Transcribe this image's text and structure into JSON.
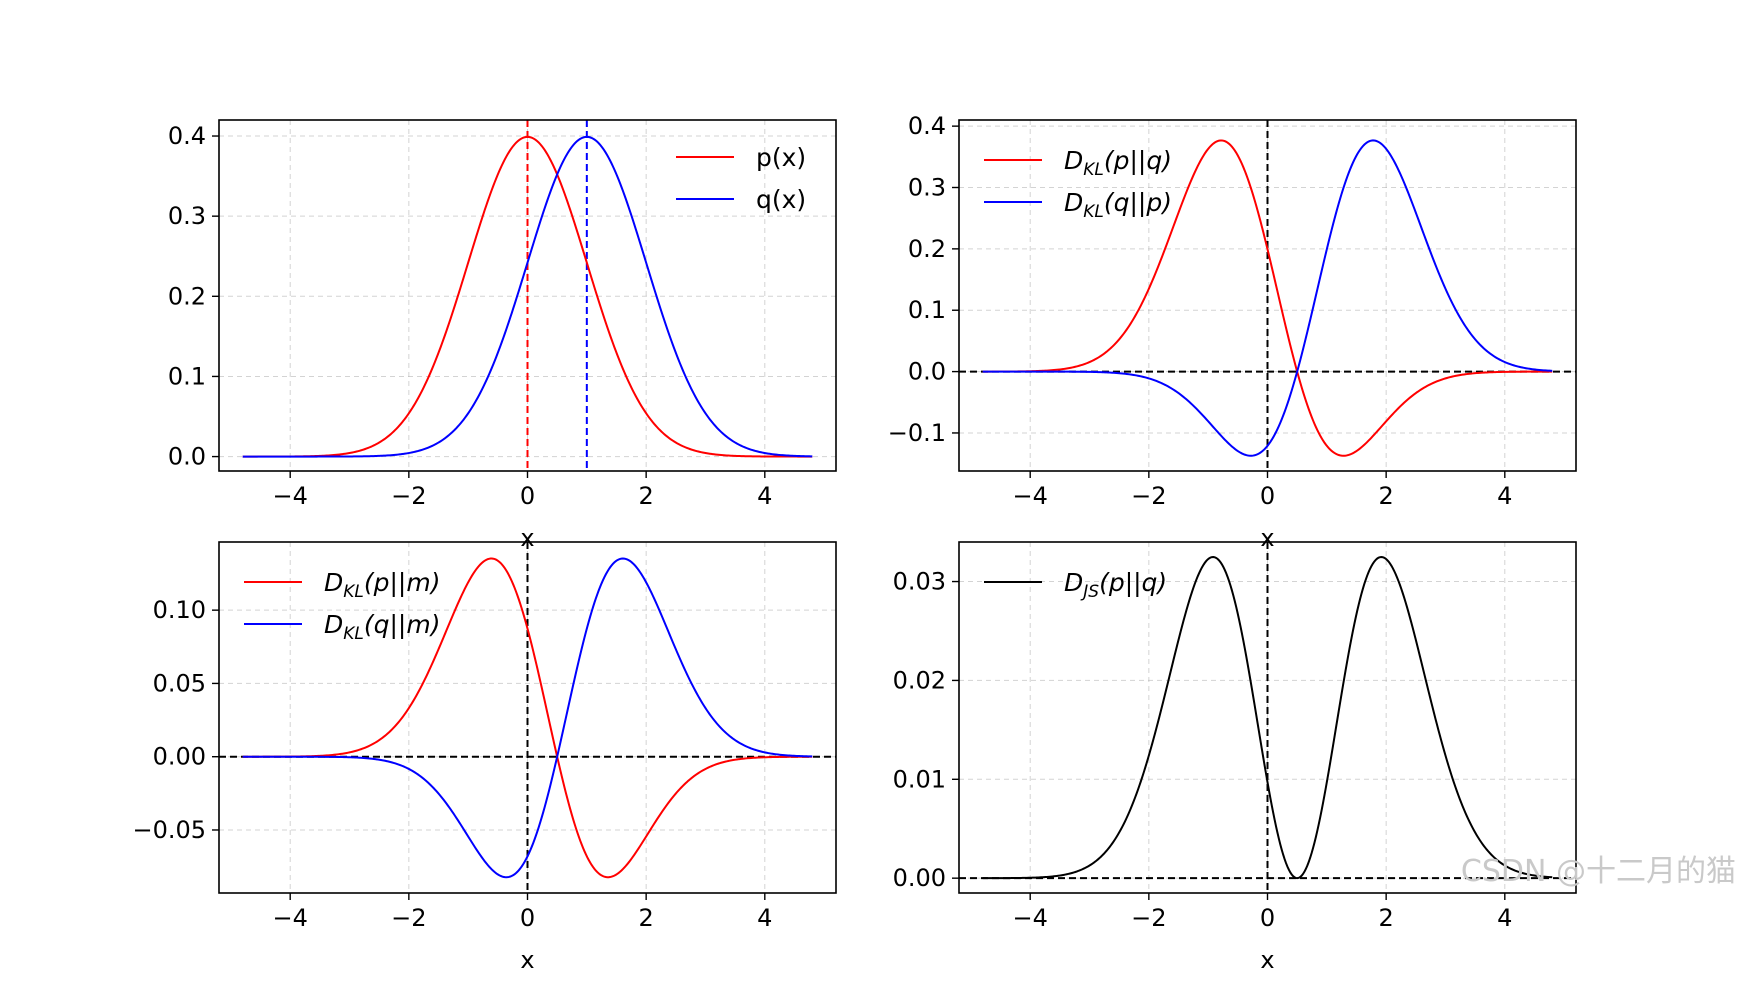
{
  "chart_data": [
    {
      "type": "line",
      "xlabel": "x",
      "xlim": [
        -5.2,
        5.2
      ],
      "ylim": [
        -0.018,
        0.42
      ],
      "xticks": [
        -4,
        -2,
        0,
        2,
        4
      ],
      "xtick_labels": [
        "−4",
        "−2",
        "0",
        "2",
        "4"
      ],
      "yticks": [
        0.0,
        0.1,
        0.2,
        0.3,
        0.4
      ],
      "ytick_labels": [
        "0.0",
        "0.1",
        "0.2",
        "0.3",
        "0.4"
      ],
      "grid": true,
      "legend": "top-right",
      "x_range": [
        -4.8,
        4.8
      ],
      "series": [
        {
          "name": "p(x)",
          "color": "#ff0000",
          "formula": "N(x; 0, 1)"
        },
        {
          "name": "q(x)",
          "color": "#0000ff",
          "formula": "N(x; 1, 1)"
        }
      ],
      "vlines": [
        {
          "x": 0,
          "color": "#ff0000"
        },
        {
          "x": 1,
          "color": "#0000ff"
        }
      ],
      "hlines": []
    },
    {
      "type": "line",
      "xlabel": "x",
      "xlim": [
        -5.2,
        5.2
      ],
      "ylim": [
        -0.162,
        0.41
      ],
      "xticks": [
        -4,
        -2,
        0,
        2,
        4
      ],
      "xtick_labels": [
        "−4",
        "−2",
        "0",
        "2",
        "4"
      ],
      "yticks": [
        -0.1,
        0.0,
        0.1,
        0.2,
        0.3,
        0.4
      ],
      "ytick_labels": [
        "−0.1",
        "0.0",
        "0.1",
        "0.2",
        "0.3",
        "0.4"
      ],
      "grid": true,
      "legend": "top-left",
      "x_range": [
        -4.8,
        4.8
      ],
      "series": [
        {
          "name_main": "D",
          "name_sub": "KL",
          "name_arg": "(p||q)",
          "color": "#ff0000",
          "formula": "p*ln(p/q)"
        },
        {
          "name_main": "D",
          "name_sub": "KL",
          "name_arg": "(q||p)",
          "color": "#0000ff",
          "formula": "q*ln(q/p)"
        }
      ],
      "vlines": [
        {
          "x": 0,
          "color": "#000000"
        }
      ],
      "hlines": [
        {
          "y": 0,
          "color": "#000000"
        }
      ]
    },
    {
      "type": "line",
      "xlabel": "x",
      "xlim": [
        -5.2,
        5.2
      ],
      "ylim": [
        -0.093,
        0.1465
      ],
      "xticks": [
        -4,
        -2,
        0,
        2,
        4
      ],
      "xtick_labels": [
        "−4",
        "−2",
        "0",
        "2",
        "4"
      ],
      "yticks": [
        -0.05,
        0.0,
        0.05,
        0.1
      ],
      "ytick_labels": [
        "−0.05",
        "0.00",
        "0.05",
        "0.10"
      ],
      "grid": true,
      "legend": "top-left",
      "x_range": [
        -4.8,
        4.8
      ],
      "series": [
        {
          "name_main": "D",
          "name_sub": "KL",
          "name_arg": "(p||m)",
          "color": "#ff0000",
          "formula": "p*ln(p/m)"
        },
        {
          "name_main": "D",
          "name_sub": "KL",
          "name_arg": "(q||m)",
          "color": "#0000ff",
          "formula": "q*ln(q/m)"
        }
      ],
      "vlines": [
        {
          "x": 0,
          "color": "#000000"
        }
      ],
      "hlines": [
        {
          "y": 0,
          "color": "#000000"
        }
      ]
    },
    {
      "type": "line",
      "xlabel": "x",
      "xlim": [
        -5.2,
        5.2
      ],
      "ylim": [
        -0.0015,
        0.034
      ],
      "xticks": [
        -4,
        -2,
        0,
        2,
        4
      ],
      "xtick_labels": [
        "−4",
        "−2",
        "0",
        "2",
        "4"
      ],
      "yticks": [
        0.0,
        0.01,
        0.02,
        0.03
      ],
      "ytick_labels": [
        "0.00",
        "0.01",
        "0.02",
        "0.03"
      ],
      "grid": true,
      "legend": "top-left",
      "x_range": [
        -4.8,
        4.8
      ],
      "series": [
        {
          "name_main": "D",
          "name_sub": "JS",
          "name_arg": "(p||q)",
          "color": "#000000",
          "formula": "0.5*(KL(p||m)+KL(q||m)) pointwise"
        }
      ],
      "vlines": [
        {
          "x": 0,
          "color": "#000000"
        }
      ],
      "hlines": [
        {
          "y": 0,
          "color": "#000000"
        }
      ]
    }
  ],
  "watermark": "CSDN @十二月的猫"
}
